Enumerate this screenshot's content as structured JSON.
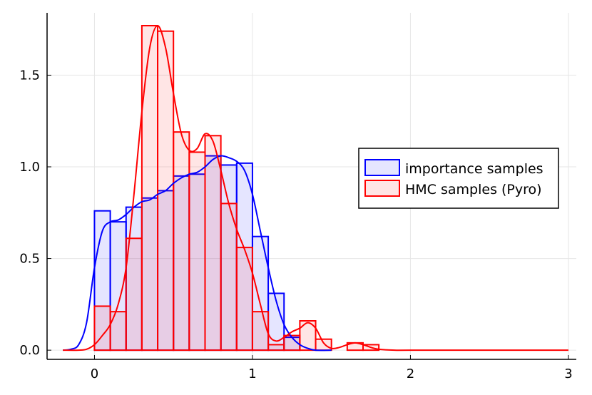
{
  "chart_data": {
    "type": "histogram",
    "title": "",
    "xlabel": "",
    "ylabel": "",
    "xlim": [
      -0.3,
      3.05
    ],
    "ylim": [
      -0.05,
      1.84
    ],
    "x_ticks": [
      0,
      1,
      2,
      3
    ],
    "x_tick_labels": [
      "0",
      "1",
      "2",
      "3"
    ],
    "y_ticks": [
      0.0,
      0.5,
      1.0,
      1.5
    ],
    "y_tick_labels": [
      "0.0",
      "0.5",
      "1.0",
      "1.5"
    ],
    "grid": true,
    "legend_position": "right",
    "bin_width": 0.1,
    "series": [
      {
        "name": "importance samples",
        "color": "#0000ff",
        "fill": "rgba(0,0,255,0.1)",
        "bins": [
          {
            "x0": 0.0,
            "value": 0.76
          },
          {
            "x0": 0.1,
            "value": 0.7
          },
          {
            "x0": 0.2,
            "value": 0.78
          },
          {
            "x0": 0.3,
            "value": 0.83
          },
          {
            "x0": 0.4,
            "value": 0.87
          },
          {
            "x0": 0.5,
            "value": 0.95
          },
          {
            "x0": 0.6,
            "value": 0.96
          },
          {
            "x0": 0.7,
            "value": 1.06
          },
          {
            "x0": 0.8,
            "value": 1.01
          },
          {
            "x0": 0.9,
            "value": 1.02
          },
          {
            "x0": 1.0,
            "value": 0.62
          },
          {
            "x0": 1.1,
            "value": 0.31
          },
          {
            "x0": 1.2,
            "value": 0.07
          }
        ],
        "density": [
          [
            -0.2,
            0.0
          ],
          [
            -0.15,
            0.005
          ],
          [
            -0.1,
            0.03
          ],
          [
            -0.05,
            0.15
          ],
          [
            0.0,
            0.45
          ],
          [
            0.05,
            0.65
          ],
          [
            0.1,
            0.7
          ],
          [
            0.15,
            0.71
          ],
          [
            0.2,
            0.74
          ],
          [
            0.25,
            0.78
          ],
          [
            0.3,
            0.81
          ],
          [
            0.35,
            0.82
          ],
          [
            0.4,
            0.85
          ],
          [
            0.45,
            0.87
          ],
          [
            0.5,
            0.91
          ],
          [
            0.55,
            0.94
          ],
          [
            0.6,
            0.96
          ],
          [
            0.65,
            0.97
          ],
          [
            0.7,
            1.0
          ],
          [
            0.75,
            1.04
          ],
          [
            0.8,
            1.06
          ],
          [
            0.85,
            1.05
          ],
          [
            0.9,
            1.03
          ],
          [
            0.95,
            0.98
          ],
          [
            1.0,
            0.85
          ],
          [
            1.05,
            0.65
          ],
          [
            1.1,
            0.45
          ],
          [
            1.15,
            0.27
          ],
          [
            1.2,
            0.14
          ],
          [
            1.25,
            0.07
          ],
          [
            1.3,
            0.03
          ],
          [
            1.35,
            0.01
          ],
          [
            1.4,
            0.0
          ],
          [
            1.5,
            0.0
          ]
        ]
      },
      {
        "name": "HMC samples (Pyro)",
        "color": "#ff0000",
        "fill": "rgba(255,0,0,0.1)",
        "bins": [
          {
            "x0": 0.0,
            "value": 0.24
          },
          {
            "x0": 0.1,
            "value": 0.21
          },
          {
            "x0": 0.2,
            "value": 0.61
          },
          {
            "x0": 0.3,
            "value": 1.77
          },
          {
            "x0": 0.4,
            "value": 1.74
          },
          {
            "x0": 0.5,
            "value": 1.19
          },
          {
            "x0": 0.6,
            "value": 1.08
          },
          {
            "x0": 0.7,
            "value": 1.17
          },
          {
            "x0": 0.8,
            "value": 0.8
          },
          {
            "x0": 0.9,
            "value": 0.56
          },
          {
            "x0": 1.0,
            "value": 0.21
          },
          {
            "x0": 1.1,
            "value": 0.03
          },
          {
            "x0": 1.2,
            "value": 0.08
          },
          {
            "x0": 1.3,
            "value": 0.16
          },
          {
            "x0": 1.4,
            "value": 0.06
          },
          {
            "x0": 1.5,
            "value": 0.0
          },
          {
            "x0": 1.6,
            "value": 0.04
          },
          {
            "x0": 1.7,
            "value": 0.03
          }
        ],
        "density": [
          [
            -0.2,
            0.0
          ],
          [
            -0.1,
            0.0
          ],
          [
            -0.05,
            0.005
          ],
          [
            0.0,
            0.03
          ],
          [
            0.05,
            0.08
          ],
          [
            0.1,
            0.14
          ],
          [
            0.15,
            0.25
          ],
          [
            0.2,
            0.45
          ],
          [
            0.25,
            0.85
          ],
          [
            0.3,
            1.3
          ],
          [
            0.35,
            1.65
          ],
          [
            0.4,
            1.77
          ],
          [
            0.45,
            1.65
          ],
          [
            0.5,
            1.4
          ],
          [
            0.55,
            1.18
          ],
          [
            0.6,
            1.09
          ],
          [
            0.65,
            1.1
          ],
          [
            0.7,
            1.18
          ],
          [
            0.75,
            1.14
          ],
          [
            0.8,
            0.98
          ],
          [
            0.85,
            0.8
          ],
          [
            0.9,
            0.66
          ],
          [
            0.95,
            0.55
          ],
          [
            1.0,
            0.42
          ],
          [
            1.05,
            0.25
          ],
          [
            1.1,
            0.09
          ],
          [
            1.15,
            0.05
          ],
          [
            1.2,
            0.07
          ],
          [
            1.25,
            0.1
          ],
          [
            1.3,
            0.12
          ],
          [
            1.35,
            0.15
          ],
          [
            1.4,
            0.12
          ],
          [
            1.45,
            0.04
          ],
          [
            1.5,
            0.01
          ],
          [
            1.55,
            0.015
          ],
          [
            1.6,
            0.03
          ],
          [
            1.65,
            0.04
          ],
          [
            1.7,
            0.03
          ],
          [
            1.75,
            0.015
          ],
          [
            1.8,
            0.005
          ],
          [
            1.9,
            0.0
          ],
          [
            2.0,
            0.0
          ],
          [
            2.5,
            0.0
          ],
          [
            3.0,
            0.0
          ]
        ]
      }
    ]
  }
}
